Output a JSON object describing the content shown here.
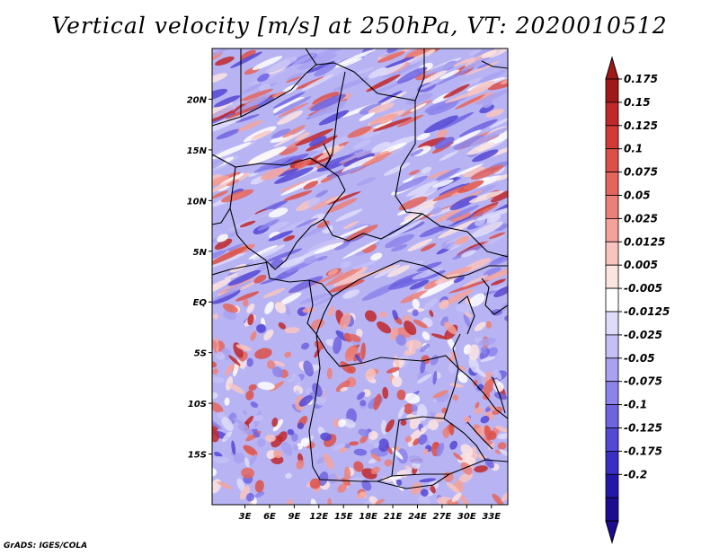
{
  "title": "Vertical velocity [m/s] at 250hPa, VT: 2020010512",
  "credit": "GrADS: IGES/COLA",
  "map": {
    "variable": "vertical velocity",
    "level": "250hPa",
    "lat_range": [
      -20,
      25
    ],
    "lon_range": [
      -1,
      35
    ],
    "lat_ticks": [
      "20N",
      "15N",
      "10N",
      "5N",
      "EQ",
      "5S",
      "10S",
      "15S"
    ],
    "lat_tick_values": [
      20,
      15,
      10,
      5,
      0,
      -5,
      -10,
      -15
    ],
    "lon_ticks": [
      "3E",
      "6E",
      "9E",
      "12E",
      "15E",
      "18E",
      "21E",
      "24E",
      "27E",
      "30E",
      "33E"
    ],
    "lon_tick_values": [
      3,
      6,
      9,
      12,
      15,
      18,
      21,
      24,
      27,
      30,
      33
    ]
  },
  "colorbar": {
    "labels": [
      "0.175",
      "0.15",
      "0.125",
      "0.1",
      "0.075",
      "0.05",
      "0.025",
      "0.0125",
      "0.005",
      "-0.005",
      "-0.0125",
      "-0.025",
      "-0.05",
      "-0.075",
      "-0.1",
      "-0.125",
      "-0.175",
      "-0.2"
    ],
    "colors": [
      "#a01818",
      "#c0282a",
      "#d23a36",
      "#dc5048",
      "#e4655c",
      "#ec8078",
      "#f4a29a",
      "#f8c4be",
      "#fce4e0",
      "#ffffff",
      "#dedcfa",
      "#c4c0f6",
      "#a8a2f0",
      "#8c84ea",
      "#6e64e0",
      "#5448d4",
      "#3a2ec4",
      "#2416a8",
      "#1c0c90"
    ],
    "top_arrow_color": "#a01818",
    "bottom_arrow_color": "#1c0c90"
  }
}
